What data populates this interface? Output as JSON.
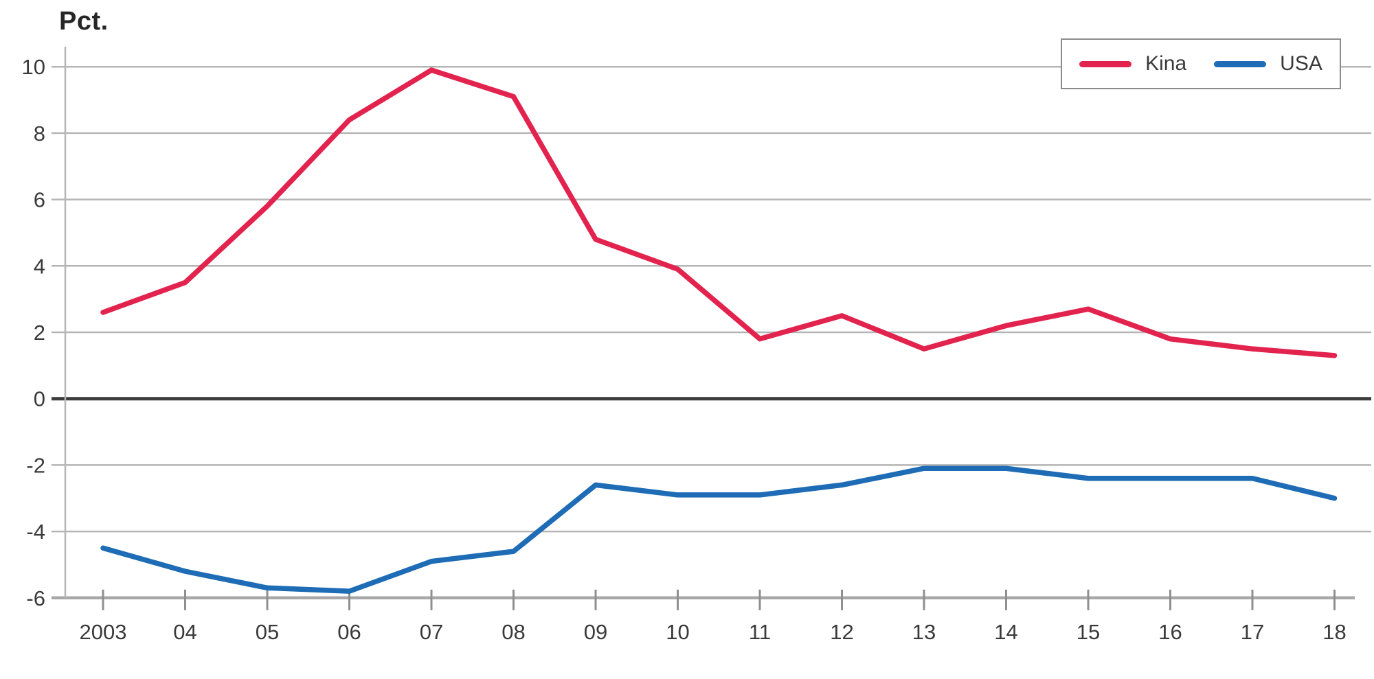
{
  "chart_data": {
    "type": "line",
    "ylabel": "Pct.",
    "x_tick_labels": [
      "2003",
      "04",
      "05",
      "06",
      "07",
      "08",
      "09",
      "10",
      "11",
      "12",
      "13",
      "14",
      "15",
      "16",
      "17",
      "18"
    ],
    "years": [
      2003,
      2004,
      2005,
      2006,
      2007,
      2008,
      2009,
      2010,
      2011,
      2012,
      2013,
      2014,
      2015,
      2016,
      2017,
      2018
    ],
    "series": [
      {
        "name": "Kina",
        "color": "#e2234e",
        "values": [
          2.6,
          3.5,
          5.8,
          8.4,
          9.9,
          9.1,
          4.8,
          3.9,
          1.8,
          2.5,
          1.5,
          2.2,
          2.7,
          1.8,
          1.5,
          1.3
        ]
      },
      {
        "name": "USA",
        "color": "#1d6cb5",
        "values": [
          -4.5,
          -5.2,
          -5.7,
          -5.8,
          -4.9,
          -4.6,
          -2.6,
          -2.9,
          -2.9,
          -2.6,
          -2.1,
          -2.1,
          -2.4,
          -2.4,
          -2.4,
          -3.0
        ]
      }
    ],
    "ylim": [
      -6,
      10
    ],
    "y_ticks": [
      10,
      8,
      6,
      4,
      2,
      0,
      -2,
      -4,
      -6
    ],
    "y_tick_labels": [
      "10",
      "8",
      "6",
      "4",
      "2",
      "0",
      "-2",
      "-4",
      "-6"
    ],
    "grid": true,
    "zero_line": true,
    "legend_position": "top-right"
  },
  "colors": {
    "background": "#ffffff",
    "grid": "#b5b5b5",
    "zero_line": "#3d3d3d",
    "axis_line": "#a8a8a8",
    "tick": "#8f8f8f",
    "tick_label": "#3a3a3a",
    "y_axis_title": "#262626",
    "legend_border": "#8c8c8c"
  }
}
